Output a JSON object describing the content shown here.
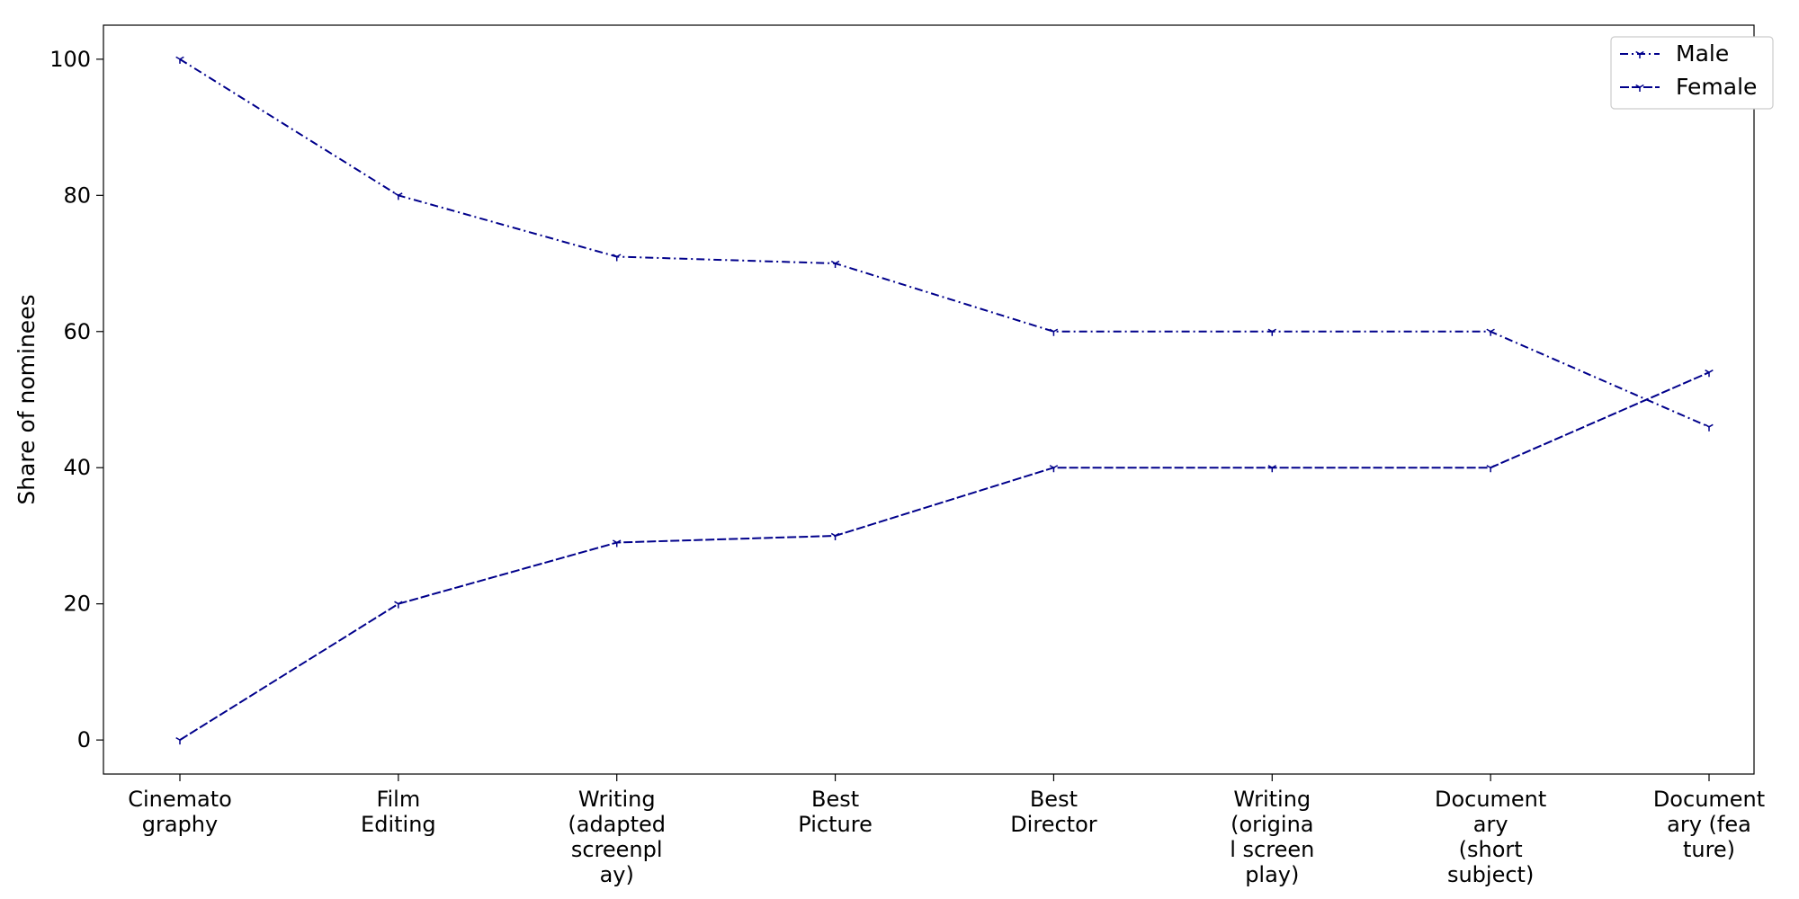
{
  "chart_data": {
    "type": "line",
    "title": "",
    "xlabel": "",
    "ylabel": "Share of nominees",
    "categories": [
      "Cinemato\ngraphy",
      "Film\nEditing",
      "Writing\n(adapted\nscreenpl\nay)",
      "Best\nPicture",
      "Best\nDirector",
      "Writing\n(origina\nl screen\nplay)",
      "Document\nary\n(short\nsubject)",
      "Document\nary (fea\nture)"
    ],
    "series": [
      {
        "name": "Male",
        "values": [
          100,
          80,
          71,
          70,
          60,
          60,
          60,
          46
        ],
        "color": "#00008b",
        "line_style": "dash-dot",
        "marker": "tri-down"
      },
      {
        "name": "Female",
        "values": [
          0,
          20,
          29,
          30,
          40,
          40,
          40,
          54
        ],
        "color": "#00008b",
        "line_style": "dashed",
        "marker": "tri-down"
      }
    ],
    "ylim": [
      -5,
      105
    ],
    "yticks": [
      0,
      20,
      40,
      60,
      80,
      100
    ],
    "grid": false,
    "legend_position": "top-right"
  }
}
